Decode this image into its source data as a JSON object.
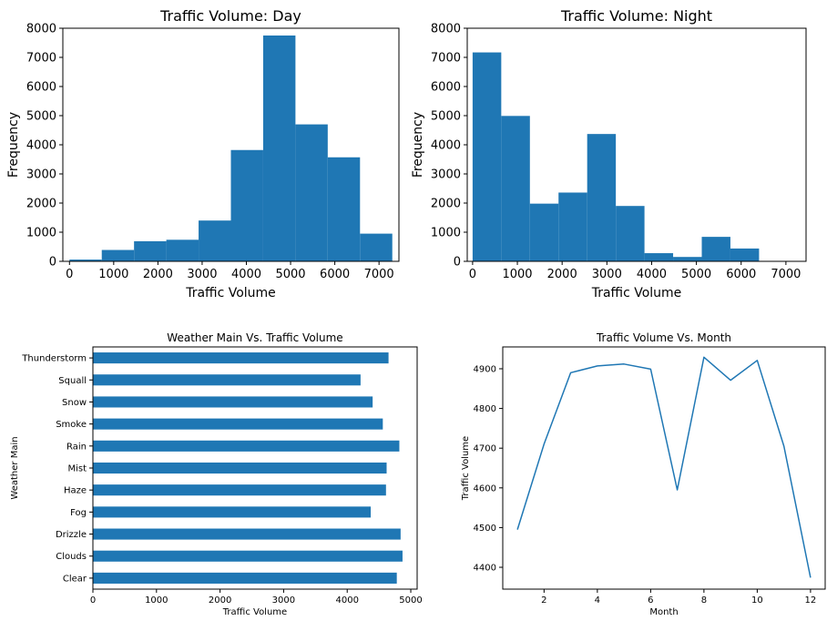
{
  "chart_data": [
    {
      "type": "bar",
      "title": "Traffic Volume: Day",
      "xlabel": "Traffic Volume",
      "ylabel": "Frequency",
      "color": "#1f77b4",
      "bins": [
        {
          "x0": 0,
          "x1": 730,
          "count": 60
        },
        {
          "x0": 730,
          "x1": 1460,
          "count": 390
        },
        {
          "x0": 1460,
          "x1": 2190,
          "count": 690
        },
        {
          "x0": 2190,
          "x1": 2920,
          "count": 740
        },
        {
          "x0": 2920,
          "x1": 3650,
          "count": 1400
        },
        {
          "x0": 3650,
          "x1": 4380,
          "count": 3820
        },
        {
          "x0": 4380,
          "x1": 5110,
          "count": 7750
        },
        {
          "x0": 5110,
          "x1": 5840,
          "count": 4700
        },
        {
          "x0": 5840,
          "x1": 6570,
          "count": 3570
        },
        {
          "x0": 6570,
          "x1": 7300,
          "count": 950
        }
      ],
      "xlim": [
        -150,
        7450
      ],
      "ylim": [
        0,
        8000
      ],
      "xticks": [
        0,
        1000,
        2000,
        3000,
        4000,
        5000,
        6000,
        7000
      ],
      "yticks": [
        0,
        1000,
        2000,
        3000,
        4000,
        5000,
        6000,
        7000,
        8000
      ]
    },
    {
      "type": "bar",
      "title": "Traffic Volume: Night",
      "xlabel": "Traffic Volume",
      "ylabel": "Frequency",
      "color": "#1f77b4",
      "bins": [
        {
          "x0": 0,
          "x1": 640,
          "count": 7170
        },
        {
          "x0": 640,
          "x1": 1280,
          "count": 4990
        },
        {
          "x0": 1280,
          "x1": 1920,
          "count": 1980
        },
        {
          "x0": 1920,
          "x1": 2560,
          "count": 2360
        },
        {
          "x0": 2560,
          "x1": 3200,
          "count": 4370
        },
        {
          "x0": 3200,
          "x1": 3840,
          "count": 1900
        },
        {
          "x0": 3840,
          "x1": 4480,
          "count": 280
        },
        {
          "x0": 4480,
          "x1": 5120,
          "count": 150
        },
        {
          "x0": 5120,
          "x1": 5760,
          "count": 840
        },
        {
          "x0": 5760,
          "x1": 6400,
          "count": 440
        }
      ],
      "xlim": [
        -120,
        7450
      ],
      "ylim": [
        0,
        8000
      ],
      "xticks": [
        0,
        1000,
        2000,
        3000,
        4000,
        5000,
        6000,
        7000
      ],
      "yticks": [
        0,
        1000,
        2000,
        3000,
        4000,
        5000,
        6000,
        7000,
        8000
      ]
    },
    {
      "type": "bar",
      "orientation": "horizontal",
      "title": "Weather Main Vs. Traffic Volume",
      "xlabel": "Traffic Volume",
      "ylabel": "Weather Main",
      "color": "#1f77b4",
      "categories": [
        "Clear",
        "Clouds",
        "Drizzle",
        "Fog",
        "Haze",
        "Mist",
        "Rain",
        "Smoke",
        "Snow",
        "Squall",
        "Thunderstorm"
      ],
      "values": [
        4780,
        4870,
        4840,
        4370,
        4610,
        4620,
        4820,
        4560,
        4400,
        4210,
        4650
      ],
      "xlim": [
        0,
        5100
      ],
      "xticks": [
        0,
        1000,
        2000,
        3000,
        4000,
        5000
      ]
    },
    {
      "type": "line",
      "title": "Traffic Volume Vs. Month",
      "xlabel": "Month",
      "ylabel": "Traffic Volume",
      "color": "#1f77b4",
      "x": [
        1,
        2,
        3,
        4,
        5,
        6,
        7,
        8,
        9,
        10,
        11,
        12
      ],
      "y": [
        4495,
        4710,
        4890,
        4907,
        4912,
        4899,
        4595,
        4929,
        4871,
        4921,
        4705,
        4374
      ],
      "xlim": [
        0.45,
        12.55
      ],
      "ylim": [
        4345,
        4955
      ],
      "xticks": [
        2,
        4,
        6,
        8,
        10,
        12
      ],
      "yticks": [
        4400,
        4500,
        4600,
        4700,
        4800,
        4900
      ]
    }
  ]
}
